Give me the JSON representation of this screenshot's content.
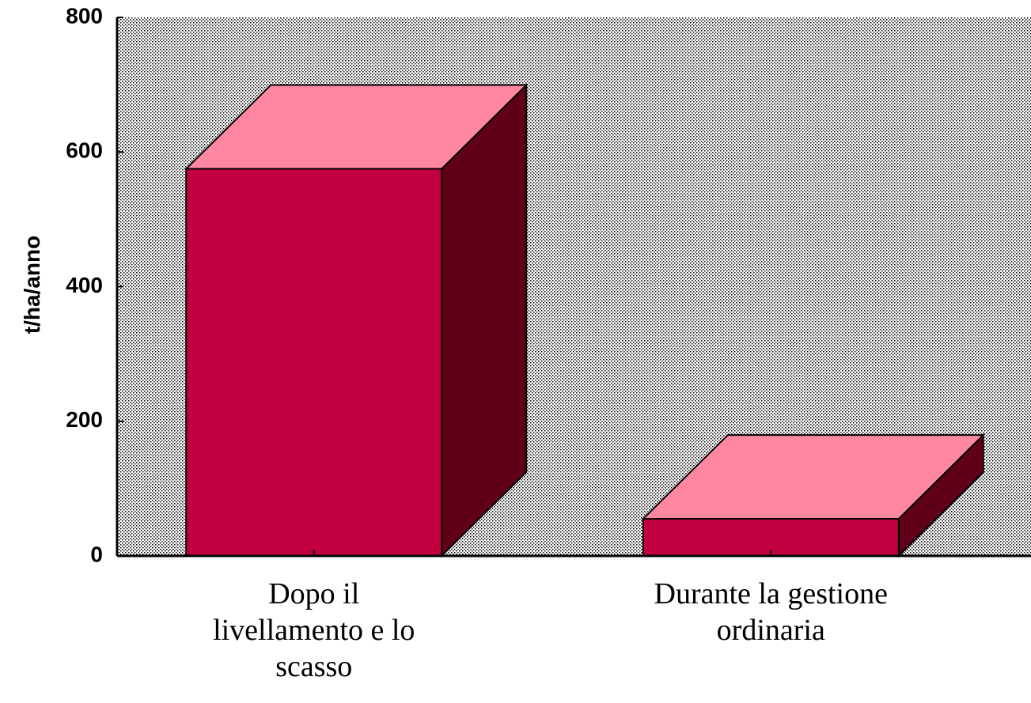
{
  "chart_data": {
    "type": "bar3d",
    "y_label": "t/ha/anno",
    "categories": [
      "Dopo il livellamento e lo scasso",
      "Durante la gestione ordinaria"
    ],
    "values": [
      575,
      55
    ],
    "colors": {
      "front": "#c20040",
      "top": "#ff88a0",
      "side": "#600018"
    },
    "ylim": [
      0,
      800
    ],
    "yticks": [
      0,
      200,
      400,
      600,
      800
    ]
  }
}
